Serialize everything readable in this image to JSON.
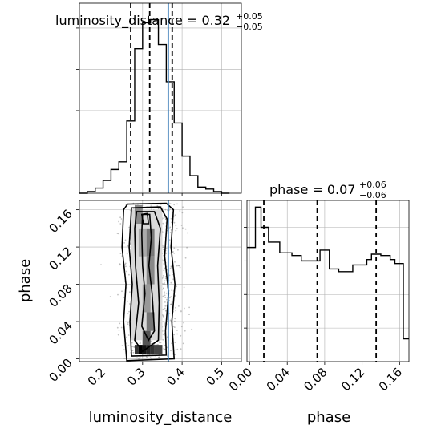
{
  "chart_data": {
    "type": "corner",
    "truth": {
      "luminosity_distance": 0.365,
      "phase": null
    },
    "colors": {
      "truth": "#3f7fb8",
      "line": "#000000",
      "grid": "#b0b0b0"
    },
    "hist_lum": {
      "title_param": "luminosity_distance",
      "title_value": "0.32",
      "title_plus": "+0.05",
      "title_minus": "−0.05",
      "quantiles": [
        0.27,
        0.318,
        0.375
      ],
      "xlim": [
        0.14,
        0.55
      ],
      "edges": [
        0.14,
        0.16,
        0.18,
        0.2,
        0.22,
        0.24,
        0.26,
        0.28,
        0.3,
        0.32,
        0.34,
        0.36,
        0.38,
        0.4,
        0.42,
        0.44,
        0.46,
        0.48,
        0.5,
        0.52
      ],
      "counts": [
        0,
        0.8,
        2.5,
        6.2,
        11.5,
        15.2,
        35,
        70,
        82.5,
        84,
        72,
        54,
        34,
        18,
        8.5,
        3,
        2,
        0.8,
        0
      ]
    },
    "hist_phase": {
      "title_param": "phase",
      "title_value": "0.07",
      "title_plus": "+0.06",
      "title_minus": "−0.06",
      "quantiles": [
        0.015,
        0.072,
        0.135
      ],
      "xlim": [
        -0.003,
        0.17
      ],
      "edges": [
        -0.003,
        0.006,
        0.012,
        0.02,
        0.032,
        0.045,
        0.055,
        0.075,
        0.085,
        0.095,
        0.11,
        0.125,
        0.13,
        0.14,
        0.15,
        0.155,
        0.164,
        0.17
      ],
      "counts": [
        0.85,
        1.15,
        1.0,
        0.89,
        0.81,
        0.79,
        0.75,
        0.83,
        0.69,
        0.67,
        0.72,
        0.76,
        0.8,
        0.79,
        0.76,
        0.73,
        0.17
      ]
    },
    "scatter": {
      "xlabel": "luminosity_distance",
      "ylabel": "phase",
      "xlim": [
        0.14,
        0.55
      ],
      "ylim": [
        -0.003,
        0.17
      ],
      "x_ticks": [
        "0.2",
        "0.3",
        "0.4",
        "0.5"
      ],
      "y_ticks": [
        "0.00",
        "0.04",
        "0.08",
        "0.12",
        "0.16"
      ]
    },
    "phase_x_ticks": [
      "0.00",
      "0.04",
      "0.08",
      "0.12",
      "0.16"
    ]
  }
}
